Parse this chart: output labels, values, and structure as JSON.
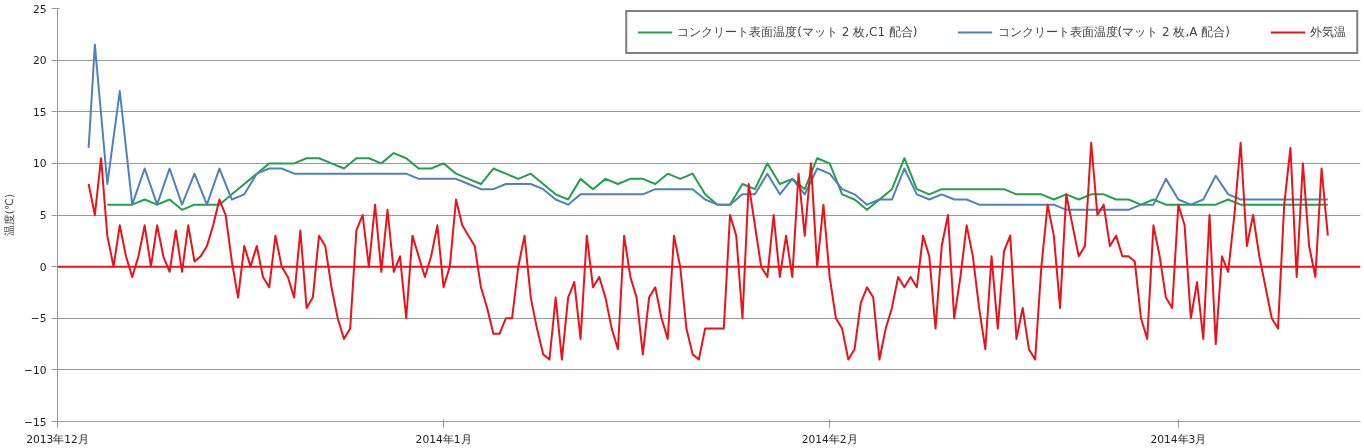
{
  "chart_data": {
    "type": "line",
    "ylabel": "温度(℃)",
    "xlim": [
      "2013-12-01",
      "2014-03-15T15:00"
    ],
    "xticks": [
      {
        "value": "2013-12-01",
        "label": "2013年12月"
      },
      {
        "value": "2014-01-01",
        "label": "2014年1月"
      },
      {
        "value": "2014-02-01",
        "label": "2014年2月"
      },
      {
        "value": "2014-03-01",
        "label": "2014年3月"
      }
    ],
    "ylim": [
      -15,
      25
    ],
    "yticks": [
      -15,
      -10,
      -5,
      0,
      5,
      10,
      15,
      20,
      25
    ],
    "grid": "y",
    "legend": "top right",
    "ref_lines": [
      {
        "axis": "y",
        "value": 0,
        "color": "#e8141a"
      }
    ],
    "series": [
      {
        "name": "コンクリート表面温度(マット 2 枚,C1 配合)",
        "color": "#22a04a",
        "x": [
          "2013-12-05",
          "2013-12-06",
          "2013-12-07",
          "2013-12-08",
          "2013-12-09",
          "2013-12-10",
          "2013-12-11",
          "2013-12-12",
          "2013-12-13",
          "2013-12-14",
          "2013-12-15",
          "2013-12-16",
          "2013-12-17",
          "2013-12-18",
          "2013-12-19",
          "2013-12-20",
          "2013-12-21",
          "2013-12-22",
          "2013-12-23",
          "2013-12-24",
          "2013-12-25",
          "2013-12-26",
          "2013-12-27",
          "2013-12-28",
          "2013-12-29",
          "2013-12-30",
          "2013-12-31",
          "2014-01-01",
          "2014-01-02",
          "2014-01-03",
          "2014-01-04",
          "2014-01-05",
          "2014-01-06",
          "2014-01-07",
          "2014-01-08",
          "2014-01-09",
          "2014-01-10",
          "2014-01-11",
          "2014-01-12",
          "2014-01-13",
          "2014-01-14",
          "2014-01-15",
          "2014-01-16",
          "2014-01-17",
          "2014-01-18",
          "2014-01-19",
          "2014-01-20",
          "2014-01-21",
          "2014-01-22",
          "2014-01-23",
          "2014-01-24",
          "2014-01-25",
          "2014-01-26",
          "2014-01-27",
          "2014-01-28",
          "2014-01-29",
          "2014-01-30",
          "2014-01-31",
          "2014-02-01",
          "2014-02-02",
          "2014-02-03",
          "2014-02-04",
          "2014-02-05",
          "2014-02-06",
          "2014-02-07",
          "2014-02-08",
          "2014-02-09",
          "2014-02-10",
          "2014-02-11",
          "2014-02-12",
          "2014-02-13",
          "2014-02-14",
          "2014-02-15",
          "2014-02-16",
          "2014-02-17",
          "2014-02-18",
          "2014-02-19",
          "2014-02-20",
          "2014-02-21",
          "2014-02-22",
          "2014-02-23",
          "2014-02-24",
          "2014-02-25",
          "2014-02-26",
          "2014-02-27",
          "2014-02-28",
          "2014-03-01",
          "2014-03-02",
          "2014-03-03",
          "2014-03-04",
          "2014-03-05",
          "2014-03-06",
          "2014-03-07",
          "2014-03-08",
          "2014-03-09",
          "2014-03-10",
          "2014-03-11",
          "2014-03-12",
          "2014-03-13"
        ],
        "values": [
          6,
          6,
          6,
          6.5,
          6,
          6.5,
          5.5,
          6,
          6,
          6,
          7,
          8,
          9,
          10,
          10,
          10,
          10.5,
          10.5,
          10,
          9.5,
          10.5,
          10.5,
          10,
          11,
          10.5,
          9.5,
          9.5,
          10,
          9,
          8.5,
          8,
          9.5,
          9,
          8.5,
          9,
          8,
          7,
          6.5,
          8.5,
          7.5,
          8.5,
          8,
          8.5,
          8.5,
          8,
          9,
          8.5,
          9,
          7,
          6,
          6,
          8,
          7.5,
          10,
          8,
          8.5,
          7.5,
          10.5,
          10,
          7,
          6.5,
          5.5,
          6.5,
          7.5,
          10.5,
          7.5,
          7,
          7.5,
          7.5,
          7.5,
          7.5,
          7.5,
          7.5,
          7,
          7,
          7,
          6.5,
          7,
          6.5,
          7,
          7,
          6.5,
          6.5,
          6,
          6.5,
          6,
          6,
          6,
          6,
          6,
          6.5,
          6,
          6,
          6,
          6,
          6,
          6,
          6,
          6
        ]
      },
      {
        "name": "コンクリート表面温度(マット 2 枚,A 配合)",
        "color": "#4f81bd",
        "x": [
          "2013-12-03T12:00",
          "2013-12-04",
          "2013-12-05",
          "2013-12-06",
          "2013-12-07",
          "2013-12-08",
          "2013-12-09",
          "2013-12-10",
          "2013-12-11",
          "2013-12-12",
          "2013-12-13",
          "2013-12-14",
          "2013-12-15",
          "2013-12-16",
          "2013-12-17",
          "2013-12-18",
          "2013-12-19",
          "2013-12-20",
          "2013-12-21",
          "2013-12-22",
          "2013-12-23",
          "2013-12-24",
          "2013-12-25",
          "2013-12-26",
          "2013-12-27",
          "2013-12-28",
          "2013-12-29",
          "2013-12-30",
          "2013-12-31",
          "2014-01-01",
          "2014-01-02",
          "2014-01-03",
          "2014-01-04",
          "2014-01-05",
          "2014-01-06",
          "2014-01-07",
          "2014-01-08",
          "2014-01-09",
          "2014-01-10",
          "2014-01-11",
          "2014-01-12",
          "2014-01-13",
          "2014-01-14",
          "2014-01-15",
          "2014-01-16",
          "2014-01-17",
          "2014-01-18",
          "2014-01-19",
          "2014-01-20",
          "2014-01-21",
          "2014-01-22",
          "2014-01-23",
          "2014-01-24",
          "2014-01-25",
          "2014-01-26",
          "2014-01-27",
          "2014-01-28",
          "2014-01-29",
          "2014-01-30",
          "2014-01-31",
          "2014-02-01",
          "2014-02-02",
          "2014-02-03",
          "2014-02-04",
          "2014-02-05",
          "2014-02-06",
          "2014-02-07",
          "2014-02-08",
          "2014-02-09",
          "2014-02-10",
          "2014-02-11",
          "2014-02-12",
          "2014-02-13",
          "2014-02-14",
          "2014-02-15",
          "2014-02-16",
          "2014-02-17",
          "2014-02-18",
          "2014-02-19",
          "2014-02-20",
          "2014-02-21",
          "2014-02-22",
          "2014-02-23",
          "2014-02-24",
          "2014-02-25",
          "2014-02-26",
          "2014-02-27",
          "2014-02-28",
          "2014-03-01",
          "2014-03-02",
          "2014-03-03",
          "2014-03-04",
          "2014-03-05",
          "2014-03-06",
          "2014-03-07",
          "2014-03-08",
          "2014-03-09",
          "2014-03-10",
          "2014-03-11",
          "2014-03-12",
          "2014-03-13"
        ],
        "values": [
          11.5,
          21.5,
          8,
          17,
          6,
          9.5,
          6,
          9.5,
          6,
          9,
          6,
          9.5,
          6.5,
          7,
          9,
          9.5,
          9.5,
          9,
          9,
          9,
          9,
          9,
          9,
          9,
          9,
          9,
          9,
          8.5,
          8.5,
          8.5,
          8.5,
          8,
          7.5,
          7.5,
          8,
          8,
          8,
          7.5,
          6.5,
          6,
          7,
          7,
          7,
          7,
          7,
          7,
          7.5,
          7.5,
          7.5,
          7.5,
          6.5,
          6,
          6,
          7,
          7,
          9,
          7,
          8.5,
          7,
          9.5,
          9,
          7.5,
          7,
          6,
          6.5,
          6.5,
          9.5,
          7,
          6.5,
          7,
          6.5,
          6.5,
          6,
          6,
          6,
          6,
          6,
          6,
          6,
          5.5,
          5.5,
          5.5,
          5.5,
          5.5,
          5.5,
          6,
          6,
          8.5,
          6.5,
          6,
          6.5,
          8.8,
          7,
          6.5,
          6.5,
          6.5,
          6.5,
          6.5,
          6.5,
          6.5,
          6.5
        ]
      },
      {
        "name": "外気温",
        "color": "#e8141a",
        "x": [
          "2013-12-03T12:00",
          "2013-12-04",
          "2013-12-04T12:00",
          "2013-12-05",
          "2013-12-05T12:00",
          "2013-12-06",
          "2013-12-06T12:00",
          "2013-12-07",
          "2013-12-07T12:00",
          "2013-12-08",
          "2013-12-08T12:00",
          "2013-12-09",
          "2013-12-09T12:00",
          "2013-12-10",
          "2013-12-10T12:00",
          "2013-12-11",
          "2013-12-11T12:00",
          "2013-12-12",
          "2013-12-12T12:00",
          "2013-12-13",
          "2013-12-13T12:00",
          "2013-12-14",
          "2013-12-14T12:00",
          "2013-12-15",
          "2013-12-15T12:00",
          "2013-12-16",
          "2013-12-16T12:00",
          "2013-12-17",
          "2013-12-17T12:00",
          "2013-12-18",
          "2013-12-18T12:00",
          "2013-12-19",
          "2013-12-19T12:00",
          "2013-12-20",
          "2013-12-20T12:00",
          "2013-12-21",
          "2013-12-21T12:00",
          "2013-12-22",
          "2013-12-22T12:00",
          "2013-12-23",
          "2013-12-23T12:00",
          "2013-12-24",
          "2013-12-24T12:00",
          "2013-12-25",
          "2013-12-25T12:00",
          "2013-12-26",
          "2013-12-26T12:00",
          "2013-12-27",
          "2013-12-27T12:00",
          "2013-12-28",
          "2013-12-28T12:00",
          "2013-12-29",
          "2013-12-29T12:00",
          "2013-12-30",
          "2013-12-30T12:00",
          "2013-12-31",
          "2013-12-31T12:00",
          "2014-01-01",
          "2014-01-01T12:00",
          "2014-01-02",
          "2014-01-02T12:00",
          "2014-01-03",
          "2014-01-03T12:00",
          "2014-01-04",
          "2014-01-04T12:00",
          "2014-01-05",
          "2014-01-05T12:00",
          "2014-01-06",
          "2014-01-06T12:00",
          "2014-01-07",
          "2014-01-07T12:00",
          "2014-01-08",
          "2014-01-08T12:00",
          "2014-01-09",
          "2014-01-09T12:00",
          "2014-01-10",
          "2014-01-10T12:00",
          "2014-01-11",
          "2014-01-11T12:00",
          "2014-01-12",
          "2014-01-12T12:00",
          "2014-01-13",
          "2014-01-13T12:00",
          "2014-01-14",
          "2014-01-14T12:00",
          "2014-01-15",
          "2014-01-15T12:00",
          "2014-01-16",
          "2014-01-16T12:00",
          "2014-01-17",
          "2014-01-17T12:00",
          "2014-01-18",
          "2014-01-18T12:00",
          "2014-01-19",
          "2014-01-19T12:00",
          "2014-01-20",
          "2014-01-20T12:00",
          "2014-01-21",
          "2014-01-21T12:00",
          "2014-01-22",
          "2014-01-22T12:00",
          "2014-01-23",
          "2014-01-23T12:00",
          "2014-01-24",
          "2014-01-24T12:00",
          "2014-01-25",
          "2014-01-25T12:00",
          "2014-01-26",
          "2014-01-26T12:00",
          "2014-01-27",
          "2014-01-27T12:00",
          "2014-01-28",
          "2014-01-28T12:00",
          "2014-01-29",
          "2014-01-29T12:00",
          "2014-01-30",
          "2014-01-30T12:00",
          "2014-01-31",
          "2014-01-31T12:00",
          "2014-02-01",
          "2014-02-01T12:00",
          "2014-02-02",
          "2014-02-02T12:00",
          "2014-02-03",
          "2014-02-03T12:00",
          "2014-02-04",
          "2014-02-04T12:00",
          "2014-02-05",
          "2014-02-05T12:00",
          "2014-02-06",
          "2014-02-06T12:00",
          "2014-02-07",
          "2014-02-07T12:00",
          "2014-02-08",
          "2014-02-08T12:00",
          "2014-02-09",
          "2014-02-09T12:00",
          "2014-02-10",
          "2014-02-10T12:00",
          "2014-02-11",
          "2014-02-11T12:00",
          "2014-02-12",
          "2014-02-12T12:00",
          "2014-02-13",
          "2014-02-13T12:00",
          "2014-02-14",
          "2014-02-14T12:00",
          "2014-02-15",
          "2014-02-15T12:00",
          "2014-02-16",
          "2014-02-16T12:00",
          "2014-02-17",
          "2014-02-17T12:00",
          "2014-02-18",
          "2014-02-18T12:00",
          "2014-02-19",
          "2014-02-19T12:00",
          "2014-02-20",
          "2014-02-20T12:00",
          "2014-02-21",
          "2014-02-21T12:00",
          "2014-02-22",
          "2014-02-22T12:00",
          "2014-02-23",
          "2014-02-23T12:00",
          "2014-02-24",
          "2014-02-24T12:00",
          "2014-02-25",
          "2014-02-25T12:00",
          "2014-02-26",
          "2014-02-26T12:00",
          "2014-02-27",
          "2014-02-27T12:00",
          "2014-02-28",
          "2014-02-28T12:00",
          "2014-03-01",
          "2014-03-01T12:00",
          "2014-03-02",
          "2014-03-02T12:00",
          "2014-03-03",
          "2014-03-03T12:00",
          "2014-03-04",
          "2014-03-04T12:00",
          "2014-03-05",
          "2014-03-05T12:00",
          "2014-03-06",
          "2014-03-06T12:00",
          "2014-03-07",
          "2014-03-07T12:00",
          "2014-03-08",
          "2014-03-08T12:00",
          "2014-03-09",
          "2014-03-09T12:00",
          "2014-03-10",
          "2014-03-10T12:00",
          "2014-03-11",
          "2014-03-11T12:00",
          "2014-03-12",
          "2014-03-12T12:00",
          "2014-03-13"
        ],
        "values": [
          8,
          5,
          10.5,
          3,
          0,
          4,
          1,
          -1,
          1,
          4,
          0,
          4,
          1,
          -0.5,
          3.5,
          -0.5,
          4,
          0.5,
          1,
          2,
          4,
          6.5,
          5,
          0.5,
          -3,
          2,
          0,
          2,
          -1,
          -2,
          3,
          0,
          -1,
          -3,
          3.5,
          -4,
          -3,
          3,
          2,
          -2,
          -5,
          -7,
          -6,
          3.5,
          5,
          0,
          6,
          -0.5,
          5.5,
          -0.5,
          1,
          -5,
          3,
          1,
          -1,
          1,
          4,
          -2,
          0,
          6.5,
          4,
          3,
          2,
          -2,
          -4,
          -6.5,
          -6.5,
          -5,
          -5,
          0,
          3,
          -3,
          -6,
          -8.5,
          -9,
          -3,
          -9,
          -3,
          -1.5,
          -7,
          3,
          -2,
          -1,
          -3,
          -6,
          -8,
          3,
          -1,
          -3,
          -8.5,
          -3,
          -2,
          -5,
          -7,
          3,
          0,
          -6,
          -8.5,
          -9,
          -6,
          -6,
          -6,
          -6,
          5,
          3,
          -5,
          8,
          4,
          0,
          -1,
          5,
          -1,
          3,
          -1,
          9,
          3,
          10,
          0,
          6,
          -1,
          -5,
          -6,
          -9,
          -8,
          -3.5,
          -2,
          -3,
          -9,
          -6,
          -4,
          -1,
          -2,
          -1,
          -2,
          3,
          1,
          -6,
          2,
          5,
          -5,
          -1,
          4,
          1,
          -4,
          -8,
          1,
          -6,
          1.5,
          3,
          -7,
          -4,
          -8,
          -9,
          0,
          6,
          3,
          -4,
          7,
          4,
          1,
          2,
          12,
          5,
          6,
          2,
          3,
          1,
          1,
          0.5,
          -5,
          -7,
          4,
          1,
          -3,
          -4,
          6,
          4,
          -5,
          -1.5,
          -7,
          5,
          -7.5,
          1,
          -0.5,
          5,
          12,
          2,
          5,
          1,
          -2,
          -5,
          -6,
          6,
          11.5,
          -1,
          10,
          2,
          -1,
          9.5,
          3
        ]
      }
    ]
  }
}
